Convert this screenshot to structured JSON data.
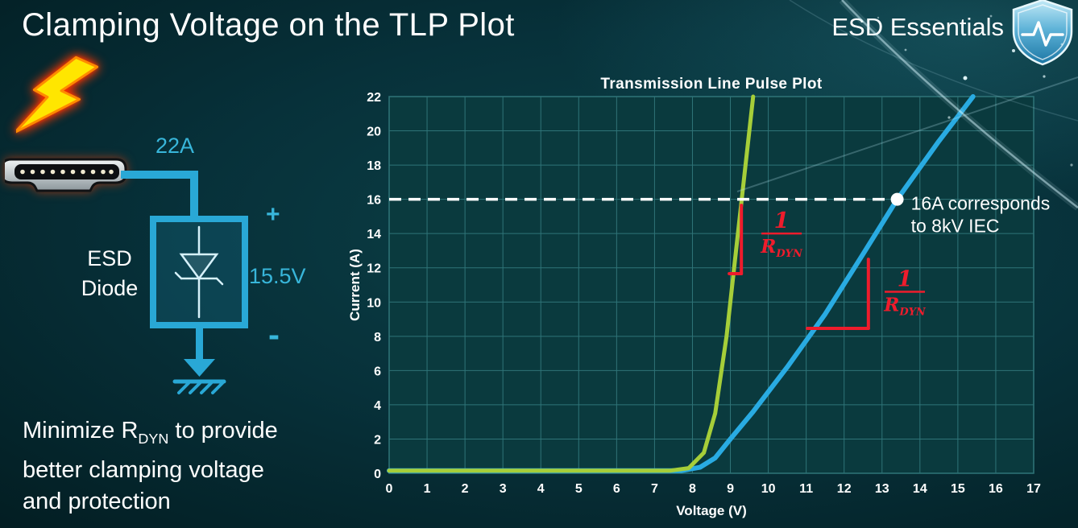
{
  "slide": {
    "title": "Clamping Voltage on the TLP Plot",
    "brand": "ESD Essentials"
  },
  "diagram": {
    "surge_current_label": "22A",
    "plus_label": "+",
    "minus_label": "-",
    "clamp_voltage_label": "15.5V",
    "device_line1": "ESD",
    "device_line2": "Diode",
    "wire_color": "#29a8d6"
  },
  "footer": {
    "line1_pre": "Minimize R",
    "line1_sub": "DYN",
    "line1_post": " to provide",
    "line2": "better clamping voltage",
    "line3": "and protection"
  },
  "chart_data": {
    "type": "line",
    "title": "Transmission Line Pulse Plot",
    "xlabel": "Voltage (V)",
    "ylabel": "Current (A)",
    "xlim": [
      0,
      17
    ],
    "ylim": [
      0,
      22
    ],
    "xticks": [
      0,
      1,
      2,
      3,
      4,
      5,
      6,
      7,
      8,
      9,
      10,
      11,
      12,
      13,
      14,
      15,
      16,
      17
    ],
    "yticks": [
      0,
      2,
      4,
      6,
      8,
      10,
      12,
      14,
      16,
      18,
      20,
      22
    ],
    "grid": true,
    "legend": "none",
    "colors": {
      "plot_bg": "#0a3a3e",
      "grid": "#2f7478",
      "annotation": "#ee1c2c",
      "threshold": "#ffffff",
      "text": "#ffffff"
    },
    "series": [
      {
        "name": "blue-curve-higher-rdyn",
        "color": "#29abe2",
        "width": 6,
        "points": [
          [
            0,
            0.15
          ],
          [
            7.7,
            0.15
          ],
          [
            8.2,
            0.35
          ],
          [
            8.6,
            0.9
          ],
          [
            9,
            2
          ],
          [
            9.6,
            3.6
          ],
          [
            10.5,
            6.2
          ],
          [
            11.5,
            9.3
          ],
          [
            12.5,
            12.8
          ],
          [
            13.4,
            16
          ],
          [
            14.5,
            19.4
          ],
          [
            15.4,
            22
          ]
        ]
      },
      {
        "name": "green-curve-low-rdyn",
        "color": "#a6ce39",
        "width": 5,
        "points": [
          [
            0,
            0.15
          ],
          [
            7.4,
            0.15
          ],
          [
            7.9,
            0.3
          ],
          [
            8.3,
            1.2
          ],
          [
            8.6,
            3.5
          ],
          [
            8.9,
            8
          ],
          [
            9.2,
            14
          ],
          [
            9.45,
            19
          ],
          [
            9.6,
            22
          ]
        ]
      }
    ],
    "threshold": {
      "y": 16,
      "marker_x": 13.4,
      "label_lines": [
        "16A corresponds",
        "to 8kV IEC"
      ]
    },
    "slope_annotations": [
      {
        "vline": {
          "x": 9.29,
          "y1": 15.65,
          "y2": 11.66
        },
        "hline": {
          "x1": 8.97,
          "x2": 9.29,
          "y": 11.66
        },
        "label": {
          "x": 10.35,
          "y": 14.0,
          "numerator": "1",
          "den_main": "R",
          "den_sub": "DYN"
        }
      },
      {
        "vline": {
          "x": 12.64,
          "y1": 12.5,
          "y2": 8.46
        },
        "hline": {
          "x1": 11.03,
          "x2": 12.64,
          "y": 8.46
        },
        "label": {
          "x": 13.6,
          "y": 10.6,
          "numerator": "1",
          "den_main": "R",
          "den_sub": "DYN"
        }
      }
    ]
  }
}
